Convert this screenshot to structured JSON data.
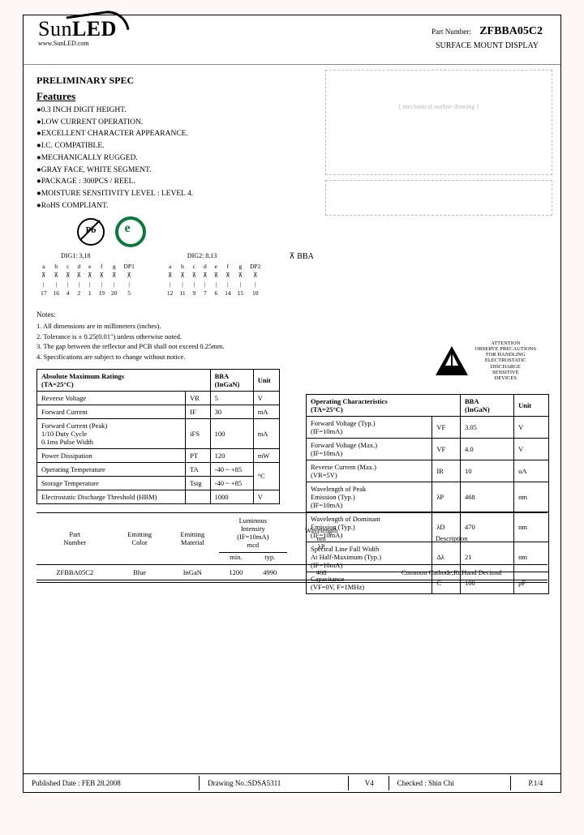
{
  "header": {
    "brand_a": "Sun",
    "brand_b": "LED",
    "url": "www.SunLED.com",
    "pn_label": "Part Number:",
    "pn": "ZFBBA05C2",
    "subtitle": "SURFACE MOUNT DISPLAY"
  },
  "sections": {
    "spec": "PRELIMINARY SPEC",
    "features": "Features"
  },
  "features": [
    "0.3 INCH DIGIT HEIGHT.",
    "LOW CURRENT OPERATION.",
    "EXCELLENT CHARACTER APPEARANCE.",
    "I.C. COMPATIBLE.",
    "MECHANICALLY RUGGED.",
    "GRAY FACE, WHITE SEGMENT.",
    "PACKAGE : 300PCS / REEL.",
    "MOISTURE SENSITIVITY LEVEL : LEVEL 4.",
    "RoHS COMPLIANT."
  ],
  "pb": "Pb",
  "pindia": {
    "d1": "DIG1: 3,18",
    "d2": "DIG2: 8,13",
    "labels": [
      "a",
      "b",
      "c",
      "d",
      "e",
      "f",
      "g",
      "DP1"
    ],
    "labels2": [
      "a",
      "b",
      "c",
      "d",
      "e",
      "f",
      "g",
      "DP2"
    ],
    "pins1": [
      "17",
      "16",
      "4",
      "2",
      "1",
      "19",
      "20",
      "5"
    ],
    "pins2": [
      "12",
      "11",
      "9",
      "7",
      "6",
      "14",
      "15",
      "10"
    ],
    "bba": "BBA"
  },
  "notes": {
    "title": "Notes:",
    "items": [
      "1. All dimensions are in millimeters (inches).",
      "2. Tolerance is ± 0.25(0.01\") unless otherwise noted.",
      "3. The gap between the reflector and PCB shall not exceed 0.25mm.",
      "4. Specifications are subject to change without notice."
    ]
  },
  "esd": {
    "l1": "ATTENTION",
    "l2": "OBSERVE PRECAUTIONS",
    "l3": "FOR HANDLING",
    "l4": "ELECTROSTATIC",
    "l5": "DISCHARGE",
    "l6": "SENSITIVE",
    "l7": "DEVICES"
  },
  "amr": {
    "title": "Absolute Maximum Ratings",
    "cond": "(TA=25°C)",
    "col1": "BBA",
    "col1s": "(InGaN)",
    "col2": "Unit",
    "rows": [
      {
        "p": "Reverse Voltage",
        "s": "VR",
        "v": "5",
        "u": "V"
      },
      {
        "p": "Forward Current",
        "s": "IF",
        "v": "30",
        "u": "mA"
      },
      {
        "p": "Forward Current (Peak)\n1/10 Duty Cycle\n0.1ms Pulse Width",
        "s": "iFS",
        "v": "100",
        "u": "mA"
      },
      {
        "p": "Power Dissipation",
        "s": "PT",
        "v": "120",
        "u": "mW"
      },
      {
        "p": "Operating Temperature",
        "s": "TA",
        "v": "-40 ~ +85",
        "u": "°C",
        "span": true
      },
      {
        "p": "Storage Temperature",
        "s": "Tstg",
        "v": "-40 ~ +85",
        "u": ""
      },
      {
        "p": "Electrostatic Discharge Threshold (HBM)",
        "s": "",
        "v": "1000",
        "u": "V"
      }
    ]
  },
  "opc": {
    "title": "Operating Characteristics",
    "cond": "(TA=25°C)",
    "col1": "BBA",
    "col1s": "(InGaN)",
    "col2": "Unit",
    "rows": [
      {
        "p": "Forward Voltage (Typ.)\n(IF=10mA)",
        "s": "VF",
        "v": "3.05",
        "u": "V"
      },
      {
        "p": "Forward Voltage (Max.)\n(IF=10mA)",
        "s": "VF",
        "v": "4.0",
        "u": "V"
      },
      {
        "p": "Reverse Current (Max.)\n(VR=5V)",
        "s": "IR",
        "v": "10",
        "u": "uA"
      },
      {
        "p": "Wavelength of Peak\nEmission (Typ.)\n(IF=10mA)",
        "s": "λP",
        "v": "468",
        "u": "nm"
      },
      {
        "p": "Wavelength of Dominant\nEmission (Typ.)\n(IF=10mA)",
        "s": "λD",
        "v": "470",
        "u": "nm"
      },
      {
        "p": "Spectral Line Full Width\nAt Half-Maximum (Typ.)\n(IF=10mA)",
        "s": "Δλ",
        "v": "21",
        "u": "nm"
      },
      {
        "p": "Capacitance\n(VF=0V, F=1MHz)",
        "s": "C",
        "v": "100",
        "u": "pF"
      }
    ]
  },
  "bottom": {
    "headers": [
      "Part\nNumber",
      "Emitting\nColor",
      "Emitting\nMaterial",
      "Luminous\nIntensity\n(IF=10mA)\nmcd",
      "Wavelength\nnm\nλP",
      "Description"
    ],
    "sub": [
      "",
      "",
      "",
      "min.",
      "typ.",
      "",
      ""
    ],
    "row": [
      "ZFBBA05C2",
      "Blue",
      "InGaN",
      "1200",
      "4990",
      "468",
      "Common Cathode,Rt.Hand Decimal"
    ]
  },
  "footer": {
    "pub": "Published Date : FEB 28.2008",
    "drw": "Drawing No.:SDSA5311",
    "ver": "V4",
    "chk": "Checked : Shin Chi",
    "pg": "P.1/4"
  }
}
